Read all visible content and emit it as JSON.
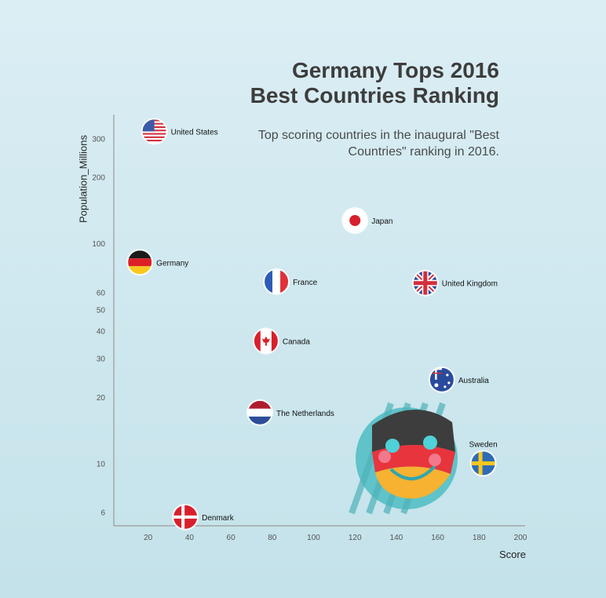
{
  "chart_data": {
    "type": "scatter",
    "title_lines": [
      "Germany Tops 2016",
      "Best Countries Ranking"
    ],
    "subtitle": "Top scoring countries in the inaugural \"Best Countries\" ranking in 2016.",
    "xlabel": "Score",
    "ylabel": "Population_Millions",
    "xlim": [
      0,
      200
    ],
    "ylim": [
      5.2,
      385
    ],
    "yscale": "log",
    "xticks": [
      20,
      40,
      60,
      80,
      100,
      120,
      140,
      160,
      180,
      200
    ],
    "yticks": [
      6,
      10,
      20,
      30,
      40,
      50,
      60,
      100,
      200,
      300
    ],
    "points": [
      {
        "label": "United States",
        "x": 23,
        "y": 323,
        "flag": "us-flag"
      },
      {
        "label": "Japan",
        "x": 120,
        "y": 127,
        "flag": "japan-flag"
      },
      {
        "label": "Germany",
        "x": 16,
        "y": 82,
        "flag": "germany-flag"
      },
      {
        "label": "France",
        "x": 82,
        "y": 67,
        "flag": "france-flag"
      },
      {
        "label": "United Kingdom",
        "x": 154,
        "y": 66,
        "flag": "uk-flag"
      },
      {
        "label": "Canada",
        "x": 77,
        "y": 36,
        "flag": "canada-flag"
      },
      {
        "label": "Australia",
        "x": 162,
        "y": 24,
        "flag": "australia-flag"
      },
      {
        "label": "The Netherlands",
        "x": 74,
        "y": 17,
        "flag": "netherlands-flag"
      },
      {
        "label": "Sweden",
        "x": 182,
        "y": 10,
        "flag": "sweden-flag",
        "label_position": "top"
      },
      {
        "label": "Denmark",
        "x": 38,
        "y": 5.7,
        "flag": "denmark-flag"
      }
    ]
  },
  "decoration": {
    "name": "germany-mask-illustration"
  },
  "colors": {
    "axis": "#9a9a9a",
    "tick_text": "#555555",
    "label_text": "#111111",
    "title": "#3d3d3d"
  }
}
